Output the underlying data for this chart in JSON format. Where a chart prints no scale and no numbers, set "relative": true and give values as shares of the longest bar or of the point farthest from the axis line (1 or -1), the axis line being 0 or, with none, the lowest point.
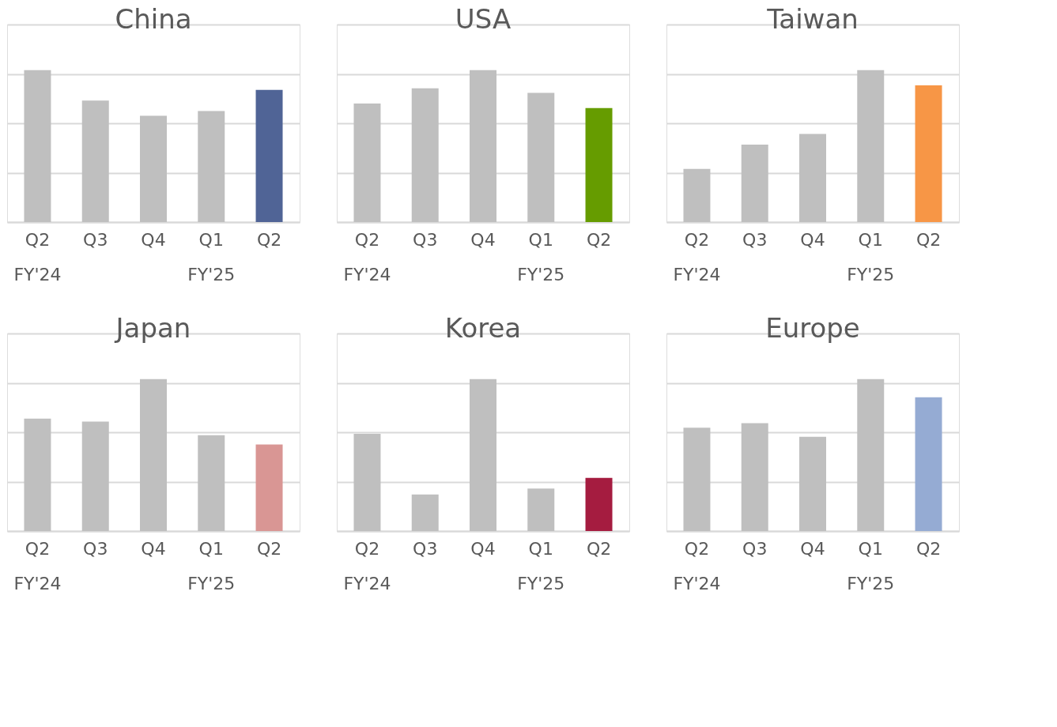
{
  "chart_data": [
    {
      "type": "bar",
      "title": "China",
      "relative": true,
      "grid": "y",
      "tick_labels": "x",
      "categories": [
        "Q2\nFY'24",
        "Q3",
        "Q4",
        "Q1\nFY'25",
        "Q2"
      ],
      "values": [
        1,
        0.8,
        0.7,
        0.73,
        0.87
      ],
      "colors": [
        "#bfbfbf",
        "#bfbfbf",
        "#bfbfbf",
        "#bfbfbf",
        "#506496"
      ]
    },
    {
      "type": "bar",
      "title": "USA",
      "relative": true,
      "grid": "y",
      "tick_labels": "x",
      "categories": [
        "Q2\nFY'24",
        "Q3",
        "Q4",
        "Q1\nFY'25",
        "Q2"
      ],
      "values": [
        0.78,
        0.88,
        1,
        0.85,
        0.75
      ],
      "colors": [
        "#bfbfbf",
        "#bfbfbf",
        "#bfbfbf",
        "#bfbfbf",
        "#669c00"
      ]
    },
    {
      "type": "bar",
      "title": "Taiwan",
      "relative": true,
      "grid": "y",
      "tick_labels": "x",
      "categories": [
        "Q2\nFY'24",
        "Q3",
        "Q4",
        "Q1\nFY'25",
        "Q2"
      ],
      "values": [
        0.35,
        0.51,
        0.58,
        1,
        0.9
      ],
      "colors": [
        "#bfbfbf",
        "#bfbfbf",
        "#bfbfbf",
        "#bfbfbf",
        "#f79646"
      ]
    },
    {
      "type": "bar",
      "title": "Japan",
      "relative": true,
      "grid": "y",
      "tick_labels": "x",
      "categories": [
        "Q2\nFY'24",
        "Q3",
        "Q4",
        "Q1\nFY'25",
        "Q2"
      ],
      "values": [
        0.74,
        0.72,
        1,
        0.63,
        0.57
      ],
      "colors": [
        "#bfbfbf",
        "#bfbfbf",
        "#bfbfbf",
        "#bfbfbf",
        "#d99694"
      ]
    },
    {
      "type": "bar",
      "title": "Korea",
      "relative": true,
      "grid": "y",
      "tick_labels": "x",
      "categories": [
        "Q2\nFY'24",
        "Q3",
        "Q4",
        "Q1\nFY'25",
        "Q2"
      ],
      "values": [
        0.64,
        0.24,
        1,
        0.28,
        0.35
      ],
      "colors": [
        "#bfbfbf",
        "#bfbfbf",
        "#bfbfbf",
        "#bfbfbf",
        "#a51c40"
      ]
    },
    {
      "type": "bar",
      "title": "Europe",
      "relative": true,
      "grid": "y",
      "tick_labels": "x",
      "categories": [
        "Q2\nFY'24",
        "Q3",
        "Q4",
        "Q1\nFY'25",
        "Q2"
      ],
      "values": [
        0.68,
        0.71,
        0.62,
        1,
        0.88
      ],
      "colors": [
        "#bfbfbf",
        "#bfbfbf",
        "#bfbfbf",
        "#bfbfbf",
        "#95abd3"
      ]
    }
  ]
}
